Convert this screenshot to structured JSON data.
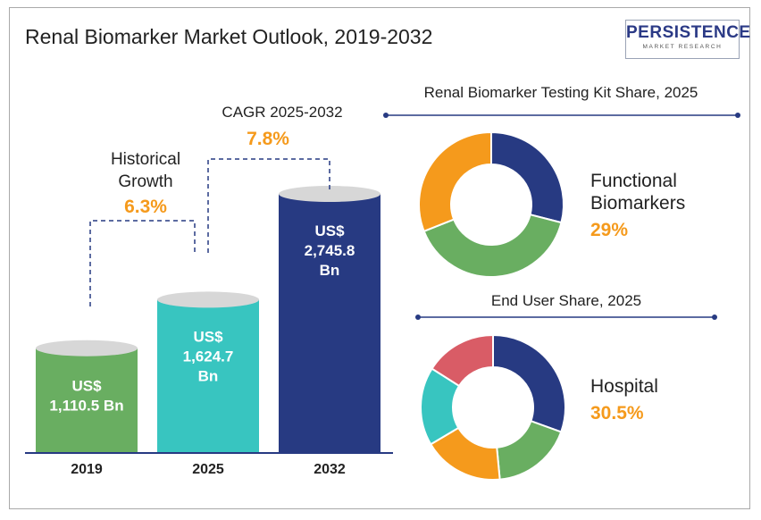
{
  "title": "Renal Biomarker Market Outlook, 2019-2032",
  "logo": {
    "name": "PERSISTENCE",
    "tagline": "MARKET RESEARCH"
  },
  "colors": {
    "green": "#69ae61",
    "teal": "#38c5c0",
    "navy": "#273a82",
    "orange": "#f59a1c",
    "red": "#d95c66",
    "text": "#222222",
    "accent": "#f59a1c"
  },
  "annotations": {
    "historical": {
      "label_line1": "Historical",
      "label_line2": "Growth",
      "value": "6.3%"
    },
    "cagr": {
      "label": "CAGR 2025-2032",
      "value": "7.8%"
    }
  },
  "chart_data": [
    {
      "type": "bar",
      "title": "",
      "categories": [
        "2019",
        "2025",
        "2032"
      ],
      "values": [
        1110.5,
        1624.7,
        2745.8
      ],
      "unit": "US$ Bn",
      "bar_labels": [
        [
          "US$",
          "1,110.5 Bn"
        ],
        [
          "US$",
          "1,624.7",
          "Bn"
        ],
        [
          "US$",
          "2,745.8",
          "Bn"
        ]
      ],
      "colors": [
        "#69ae61",
        "#38c5c0",
        "#273a82"
      ],
      "xlabel": "",
      "ylabel": ""
    },
    {
      "type": "pie",
      "title": "Renal Biomarker Testing Kit Share, 2025",
      "highlight_label": [
        "Functional",
        "Biomarkers"
      ],
      "highlight_value": "29%",
      "slices": [
        {
          "value": 29,
          "color": "#273a82"
        },
        {
          "value": 40,
          "color": "#69ae61"
        },
        {
          "value": 31,
          "color": "#f59a1c"
        }
      ]
    },
    {
      "type": "pie",
      "title": "End User Share, 2025",
      "highlight_label": [
        "Hospital"
      ],
      "highlight_value": "30.5%",
      "slices": [
        {
          "value": 30.5,
          "color": "#273a82"
        },
        {
          "value": 18,
          "color": "#69ae61"
        },
        {
          "value": 18,
          "color": "#f59a1c"
        },
        {
          "value": 17.5,
          "color": "#38c5c0"
        },
        {
          "value": 16,
          "color": "#d95c66"
        }
      ]
    }
  ]
}
